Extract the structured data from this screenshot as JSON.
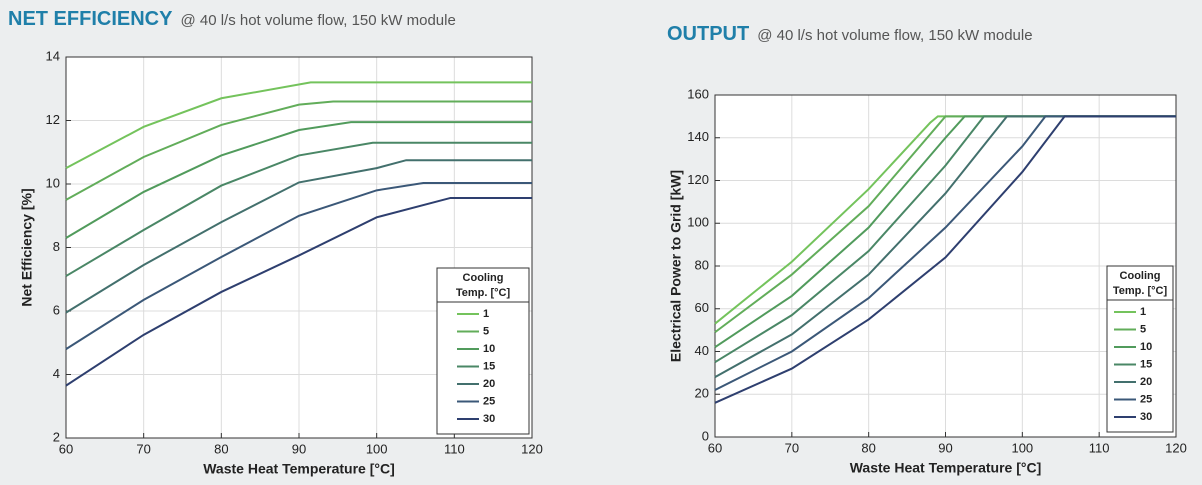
{
  "chart_data": [
    {
      "type": "line",
      "title": "NET EFFICIENCY",
      "subtitle": "@ 40 l/s hot volume flow, 150 kW module",
      "x_label": "Waste Heat Temperature [°C]",
      "y_label": "Net Efficiency [%]",
      "xlim": [
        60,
        120
      ],
      "xticks": [
        60,
        70,
        80,
        90,
        100,
        110,
        120
      ],
      "ylim": [
        2,
        14
      ],
      "yticks": [
        2,
        4,
        6,
        8,
        10,
        12,
        14
      ],
      "grid": true,
      "legend_title": [
        "Cooling",
        "Temp. [°C]"
      ],
      "legend_position": "lower-right",
      "series": [
        {
          "name": "1",
          "color": "#74c35c",
          "x": [
            60,
            70,
            80,
            91.5,
            120
          ],
          "values": [
            10.5,
            11.8,
            12.7,
            13.2,
            13.2
          ]
        },
        {
          "name": "5",
          "color": "#62ad5a",
          "x": [
            60,
            70,
            80,
            90,
            94.4,
            120
          ],
          "values": [
            9.5,
            10.85,
            11.86,
            12.5,
            12.6,
            12.6
          ]
        },
        {
          "name": "10",
          "color": "#519b5c",
          "x": [
            60,
            70,
            80,
            90,
            96.7,
            120
          ],
          "values": [
            8.3,
            9.75,
            10.9,
            11.7,
            11.95,
            11.95
          ]
        },
        {
          "name": "15",
          "color": "#4a8766",
          "x": [
            60,
            70,
            80,
            90,
            99.5,
            120
          ],
          "values": [
            7.1,
            8.55,
            9.95,
            10.9,
            11.3,
            11.3
          ]
        },
        {
          "name": "20",
          "color": "#43706d",
          "x": [
            60,
            70,
            80,
            90,
            100,
            103.8,
            120
          ],
          "values": [
            5.95,
            7.45,
            8.8,
            10.05,
            10.5,
            10.75,
            10.75
          ]
        },
        {
          "name": "25",
          "color": "#3b5878",
          "x": [
            60,
            70,
            80,
            90,
            100,
            106,
            120
          ],
          "values": [
            4.8,
            6.35,
            7.7,
            9.0,
            9.8,
            10.03,
            10.03
          ]
        },
        {
          "name": "30",
          "color": "#2e3f6f",
          "x": [
            60,
            70,
            80,
            90,
            100,
            109.5,
            120
          ],
          "values": [
            3.65,
            5.25,
            6.6,
            7.75,
            8.95,
            9.56,
            9.56
          ]
        }
      ]
    },
    {
      "type": "line",
      "title": "OUTPUT",
      "subtitle": "@ 40 l/s hot volume flow, 150 kW module",
      "x_label": "Waste Heat Temperature [°C]",
      "y_label": "Electrical Power to Grid [kW]",
      "xlim": [
        60,
        120
      ],
      "xticks": [
        60,
        70,
        80,
        90,
        100,
        110,
        120
      ],
      "ylim": [
        0,
        160
      ],
      "yticks": [
        0,
        20,
        40,
        60,
        80,
        100,
        120,
        140,
        160
      ],
      "grid": true,
      "legend_title": [
        "Cooling",
        "Temp. [°C]"
      ],
      "legend_position": "lower-right",
      "series": [
        {
          "name": "1",
          "color": "#74c35c",
          "x": [
            60,
            70,
            80,
            88,
            89,
            120
          ],
          "values": [
            53,
            82,
            116,
            147,
            150,
            150
          ]
        },
        {
          "name": "5",
          "color": "#62ad5a",
          "x": [
            60,
            70,
            80,
            90,
            120
          ],
          "values": [
            49,
            76,
            108,
            150,
            150
          ]
        },
        {
          "name": "10",
          "color": "#519b5c",
          "x": [
            60,
            70,
            80,
            90,
            92.5,
            120
          ],
          "values": [
            42,
            66,
            98,
            140,
            150,
            150
          ]
        },
        {
          "name": "15",
          "color": "#4a8766",
          "x": [
            60,
            70,
            80,
            90,
            95,
            120
          ],
          "values": [
            35,
            57,
            87,
            127,
            150,
            150
          ]
        },
        {
          "name": "20",
          "color": "#43706d",
          "x": [
            60,
            70,
            80,
            90,
            98,
            120
          ],
          "values": [
            28,
            48,
            76,
            114,
            150,
            150
          ]
        },
        {
          "name": "25",
          "color": "#3b5878",
          "x": [
            60,
            70,
            80,
            90,
            100,
            103,
            120
          ],
          "values": [
            22,
            40,
            65,
            98,
            136,
            150,
            150
          ]
        },
        {
          "name": "30",
          "color": "#2e3f6f",
          "x": [
            60,
            70,
            80,
            90,
            100,
            105.5,
            120
          ],
          "values": [
            16,
            32,
            55,
            84,
            124,
            150,
            150
          ]
        }
      ]
    }
  ]
}
